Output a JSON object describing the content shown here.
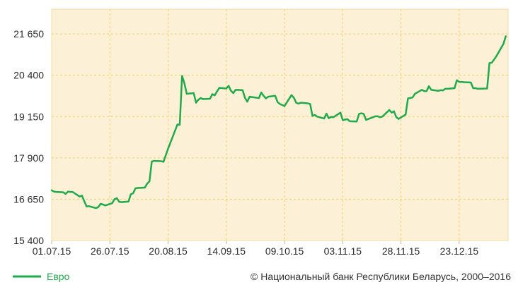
{
  "chart_data": {
    "type": "line",
    "title": "",
    "xlabel": "",
    "ylabel": "",
    "ylim": [
      15400,
      22400
    ],
    "yticks": [
      15400,
      16650,
      17900,
      19150,
      20400,
      21650
    ],
    "ytick_labels": [
      "15 400",
      "16 650",
      "17 900",
      "19 150",
      "20 400",
      "21 650"
    ],
    "xtick_labels": [
      "01.07.15",
      "26.07.15",
      "20.08.15",
      "14.09.15",
      "09.10.15",
      "03.11.15",
      "28.11.15",
      "23.12.15"
    ],
    "xlim": [
      "2015-07-01",
      "2016-01-13"
    ],
    "grid": true,
    "line_color": "#1faa4b",
    "plot_background": "#fcf1d6",
    "series": [
      {
        "name": "Евро",
        "points": [
          [
            "2015-07-01",
            16920
          ],
          [
            "2015-07-02",
            16880
          ],
          [
            "2015-07-03",
            16870
          ],
          [
            "2015-07-06",
            16860
          ],
          [
            "2015-07-07",
            16810
          ],
          [
            "2015-07-08",
            16880
          ],
          [
            "2015-07-09",
            16870
          ],
          [
            "2015-07-10",
            16870
          ],
          [
            "2015-07-13",
            16730
          ],
          [
            "2015-07-14",
            16760
          ],
          [
            "2015-07-15",
            16590
          ],
          [
            "2015-07-16",
            16430
          ],
          [
            "2015-07-17",
            16440
          ],
          [
            "2015-07-20",
            16380
          ],
          [
            "2015-07-21",
            16410
          ],
          [
            "2015-07-22",
            16510
          ],
          [
            "2015-07-23",
            16490
          ],
          [
            "2015-07-24",
            16460
          ],
          [
            "2015-07-27",
            16530
          ],
          [
            "2015-07-28",
            16650
          ],
          [
            "2015-07-29",
            16680
          ],
          [
            "2015-07-30",
            16570
          ],
          [
            "2015-07-31",
            16560
          ],
          [
            "2015-08-03",
            16580
          ],
          [
            "2015-08-04",
            16800
          ],
          [
            "2015-08-05",
            16830
          ],
          [
            "2015-08-06",
            16980
          ],
          [
            "2015-08-07",
            16990
          ],
          [
            "2015-08-10",
            17000
          ],
          [
            "2015-08-11",
            17120
          ],
          [
            "2015-08-12",
            17190
          ],
          [
            "2015-08-13",
            17790
          ],
          [
            "2015-08-14",
            17810
          ],
          [
            "2015-08-17",
            17800
          ],
          [
            "2015-08-18",
            17780
          ],
          [
            "2015-08-19",
            17980
          ],
          [
            "2015-08-20",
            18180
          ],
          [
            "2015-08-21",
            18360
          ],
          [
            "2015-08-24",
            18910
          ],
          [
            "2015-08-25",
            18900
          ],
          [
            "2015-08-26",
            20380
          ],
          [
            "2015-08-27",
            20160
          ],
          [
            "2015-08-28",
            19840
          ],
          [
            "2015-08-31",
            19860
          ],
          [
            "2015-09-01",
            19570
          ],
          [
            "2015-09-02",
            19660
          ],
          [
            "2015-09-03",
            19710
          ],
          [
            "2015-09-04",
            19680
          ],
          [
            "2015-09-07",
            19690
          ],
          [
            "2015-09-08",
            19830
          ],
          [
            "2015-09-09",
            19790
          ],
          [
            "2015-09-10",
            19910
          ],
          [
            "2015-09-11",
            20020
          ],
          [
            "2015-09-14",
            20000
          ],
          [
            "2015-09-15",
            20080
          ],
          [
            "2015-09-16",
            19930
          ],
          [
            "2015-09-17",
            19860
          ],
          [
            "2015-09-18",
            19960
          ],
          [
            "2015-09-21",
            19950
          ],
          [
            "2015-09-22",
            19720
          ],
          [
            "2015-09-23",
            19600
          ],
          [
            "2015-09-24",
            19750
          ],
          [
            "2015-09-25",
            19740
          ],
          [
            "2015-09-28",
            19710
          ],
          [
            "2015-09-29",
            19880
          ],
          [
            "2015-09-30",
            19780
          ],
          [
            "2015-10-01",
            19700
          ],
          [
            "2015-10-02",
            19750
          ],
          [
            "2015-10-05",
            19780
          ],
          [
            "2015-10-06",
            19590
          ],
          [
            "2015-10-07",
            19530
          ],
          [
            "2015-10-08",
            19500
          ],
          [
            "2015-10-09",
            19470
          ],
          [
            "2015-10-12",
            19800
          ],
          [
            "2015-10-13",
            19720
          ],
          [
            "2015-10-14",
            19570
          ],
          [
            "2015-10-15",
            19540
          ],
          [
            "2015-10-16",
            19570
          ],
          [
            "2015-10-19",
            19550
          ],
          [
            "2015-10-20",
            19530
          ],
          [
            "2015-10-21",
            19170
          ],
          [
            "2015-10-22",
            19200
          ],
          [
            "2015-10-23",
            19150
          ],
          [
            "2015-10-26",
            19090
          ],
          [
            "2015-10-27",
            19240
          ],
          [
            "2015-10-28",
            19100
          ],
          [
            "2015-10-29",
            19140
          ],
          [
            "2015-10-30",
            19130
          ],
          [
            "2015-11-02",
            19270
          ],
          [
            "2015-11-03",
            19040
          ],
          [
            "2015-11-04",
            19060
          ],
          [
            "2015-11-05",
            19070
          ],
          [
            "2015-11-06",
            19010
          ],
          [
            "2015-11-09",
            19000
          ],
          [
            "2015-11-10",
            19230
          ],
          [
            "2015-11-11",
            19250
          ],
          [
            "2015-11-12",
            19230
          ],
          [
            "2015-11-13",
            19050
          ],
          [
            "2015-11-16",
            19130
          ],
          [
            "2015-11-17",
            19160
          ],
          [
            "2015-11-18",
            19160
          ],
          [
            "2015-11-19",
            19130
          ],
          [
            "2015-11-20",
            19150
          ],
          [
            "2015-11-23",
            19350
          ],
          [
            "2015-11-24",
            19270
          ],
          [
            "2015-11-25",
            19310
          ],
          [
            "2015-11-26",
            19130
          ],
          [
            "2015-11-27",
            19080
          ],
          [
            "2015-11-30",
            19210
          ],
          [
            "2015-12-01",
            19700
          ],
          [
            "2015-12-02",
            19710
          ],
          [
            "2015-12-03",
            19730
          ],
          [
            "2015-12-04",
            19840
          ],
          [
            "2015-12-07",
            19960
          ],
          [
            "2015-12-08",
            19920
          ],
          [
            "2015-12-09",
            19920
          ],
          [
            "2015-12-10",
            20070
          ],
          [
            "2015-12-11",
            19960
          ],
          [
            "2015-12-14",
            19930
          ],
          [
            "2015-12-15",
            19950
          ],
          [
            "2015-12-16",
            19940
          ],
          [
            "2015-12-17",
            19990
          ],
          [
            "2015-12-18",
            19990
          ],
          [
            "2015-12-21",
            20010
          ],
          [
            "2015-12-22",
            20250
          ],
          [
            "2015-12-23",
            20200
          ],
          [
            "2015-12-24",
            20200
          ],
          [
            "2015-12-25",
            20190
          ],
          [
            "2015-12-28",
            20180
          ],
          [
            "2015-12-29",
            20010
          ],
          [
            "2015-12-30",
            20010
          ],
          [
            "2015-12-31",
            19990
          ],
          [
            "2016-01-04",
            20000
          ],
          [
            "2016-01-05",
            20770
          ],
          [
            "2016-01-06",
            20780
          ],
          [
            "2016-01-08",
            20980
          ],
          [
            "2016-01-11",
            21350
          ],
          [
            "2016-01-12",
            21580
          ]
        ]
      }
    ],
    "legend": {
      "position": "bottom-left",
      "label": "Евро"
    }
  },
  "copyright": "© Национальный банк Республики Беларусь, 2000–2016"
}
